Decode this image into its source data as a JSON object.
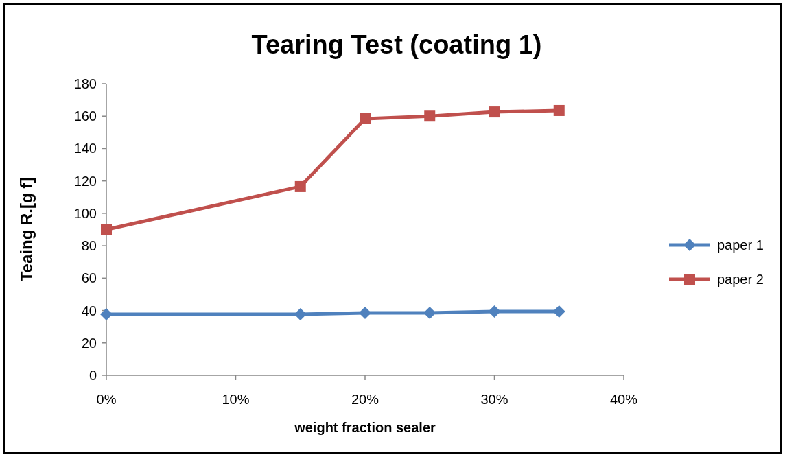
{
  "chart_data": {
    "type": "line",
    "title": "Tearing Test (coating 1)",
    "xlabel": "weight fraction sealer",
    "ylabel": "Teaing R.[g f]",
    "x": [
      0,
      15,
      20,
      25,
      30,
      35
    ],
    "series": [
      {
        "name": "paper 1",
        "color": "#4f81bd",
        "marker": "diamond",
        "values": [
          37.7,
          37.7,
          38.5,
          38.5,
          39.4,
          39.4
        ]
      },
      {
        "name": "paper 2",
        "color": "#c0504d",
        "marker": "square",
        "values": [
          90,
          116.5,
          158.4,
          160,
          162.6,
          163.5
        ]
      }
    ],
    "xlim": [
      0,
      40
    ],
    "xticks": [
      {
        "value": 0,
        "label": "0%"
      },
      {
        "value": 10,
        "label": "10%"
      },
      {
        "value": 20,
        "label": "20%"
      },
      {
        "value": 30,
        "label": "30%"
      },
      {
        "value": 40,
        "label": "40%"
      }
    ],
    "ylim": [
      0,
      180
    ],
    "yticks": [
      0,
      20,
      40,
      60,
      80,
      100,
      120,
      140,
      160,
      180
    ],
    "grid": false,
    "legend": "right",
    "line_style": "solid"
  }
}
